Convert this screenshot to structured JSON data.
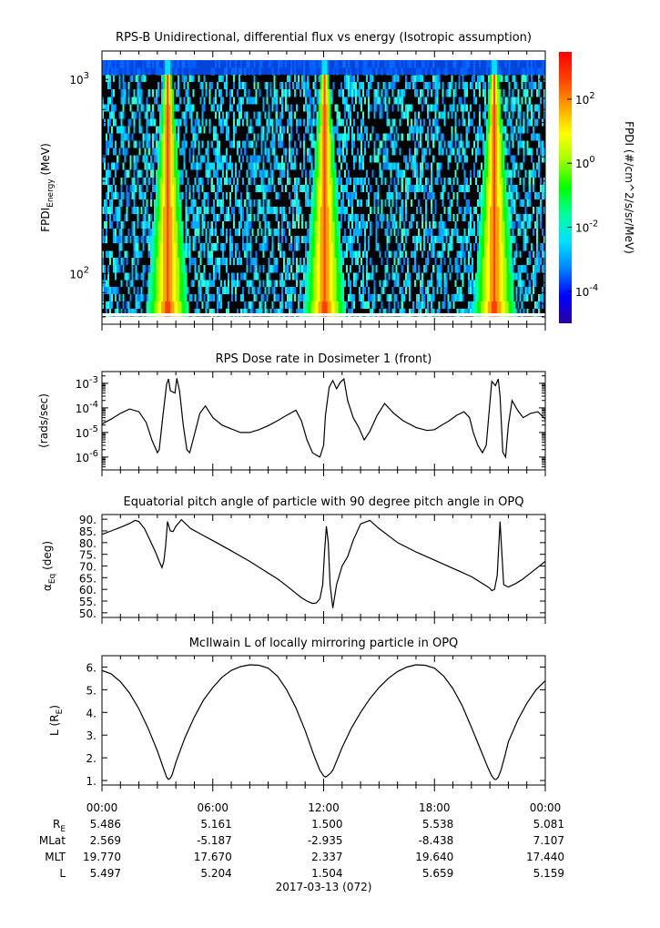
{
  "chart_data": [
    {
      "type": "heatmap",
      "title": "RPS-B  Unidirectional, differential flux vs energy (Isotropic assumption)",
      "ylabel_main": "FPDI",
      "ylabel_sub": "Energy",
      "ylabel_unit": "(MeV)",
      "y_scale": "log",
      "ylim": [
        55,
        1400
      ],
      "y_ticks": [
        {
          "base": "10",
          "exp": "2",
          "value": 100
        },
        {
          "base": "10",
          "exp": "3",
          "value": 1000
        }
      ],
      "energy_channels_mev": [
        58,
        63,
        69,
        75,
        82,
        89,
        97,
        106,
        116,
        126,
        137,
        150,
        163,
        178,
        194,
        212,
        231,
        252,
        275,
        300,
        327,
        357,
        389,
        424,
        463,
        505,
        550,
        600,
        655,
        714,
        779,
        850,
        927,
        1010,
        1100,
        1200,
        1300
      ],
      "belt_crossings_hours": [
        3.55,
        12.05,
        21.25
      ],
      "colorbar": {
        "label": "FPDI (#/cm^2/s/sr/MeV)",
        "scale": "log",
        "range": [
          1e-05,
          3000
        ],
        "ticks": [
          {
            "base": "10",
            "exp": "2",
            "value": 100
          },
          {
            "base": "10",
            "exp": "0",
            "value": 1
          },
          {
            "base": "10",
            "exp": "-2",
            "value": 0.01
          },
          {
            "base": "10",
            "exp": "-4",
            "value": 0.0001
          }
        ],
        "colors": [
          "#2a00a0",
          "#0000ff",
          "#0080ff",
          "#00e0ff",
          "#00ffa0",
          "#00ff00",
          "#a0ff00",
          "#ffff00",
          "#ffa000",
          "#ff4000",
          "#ff0000"
        ]
      }
    },
    {
      "type": "line",
      "title": "RPS  Dose rate in Dosimeter 1 (front)",
      "ylabel": "(rads/sec)",
      "y_scale": "log",
      "ylim": [
        3e-07,
        0.003
      ],
      "y_ticks": [
        {
          "base": "10",
          "exp": "-3",
          "value": 0.001
        },
        {
          "base": "10",
          "exp": "-4",
          "value": 0.0001
        },
        {
          "base": "10",
          "exp": "-5",
          "value": 1e-05
        },
        {
          "base": "10",
          "exp": "-6",
          "value": 1e-06
        }
      ],
      "x_hours": [
        0,
        0.5,
        1,
        1.5,
        2,
        2.4,
        2.7,
        3.0,
        3.1,
        3.3,
        3.5,
        3.6,
        3.7,
        3.95,
        4.05,
        4.2,
        4.4,
        4.6,
        4.75,
        5.0,
        5.3,
        5.6,
        6,
        6.5,
        7,
        7.5,
        8,
        8.5,
        9,
        9.5,
        10,
        10.5,
        10.8,
        11.1,
        11.4,
        11.6,
        11.8,
        12.0,
        12.1,
        12.3,
        12.5,
        12.7,
        12.9,
        13.1,
        13.3,
        13.6,
        13.9,
        14.2,
        14.5,
        14.9,
        15.3,
        15.8,
        16.3,
        17,
        17.6,
        18,
        18.4,
        18.8,
        19.2,
        19.6,
        19.9,
        20.1,
        20.35,
        20.6,
        20.8,
        21.0,
        21.1,
        21.3,
        21.45,
        21.55,
        21.7,
        21.85,
        22.0,
        22.2,
        22.5,
        22.8,
        23.2,
        23.6,
        24
      ],
      "series": [
        {
          "values": [
            2.2e-05,
            3.5e-05,
            6e-05,
            9e-05,
            7e-05,
            2.5e-05,
            5e-06,
            1.5e-06,
            2e-06,
            5e-05,
            0.0009,
            0.0015,
            0.0005,
            0.0004,
            0.0016,
            0.0005,
            2e-05,
            2e-06,
            1.5e-06,
            8e-06,
            6e-05,
            0.00012,
            4e-05,
            2e-05,
            1.4e-05,
            1e-05,
            1e-05,
            1.3e-05,
            1.9e-05,
            3e-05,
            5e-05,
            8e-05,
            3e-05,
            5e-06,
            1.5e-06,
            1.2e-06,
            1e-06,
            3e-06,
            5e-05,
            0.0007,
            0.0013,
            0.0006,
            0.0011,
            0.0015,
            0.0002,
            4e-05,
            1.6e-05,
            5e-06,
            1.1e-05,
            5e-05,
            0.00015,
            6e-05,
            3e-05,
            1.6e-05,
            1.2e-05,
            1.3e-05,
            2e-05,
            3e-05,
            5e-05,
            7e-05,
            4e-05,
            1e-05,
            3e-06,
            1.5e-06,
            3e-06,
            0.00015,
            0.0012,
            0.0008,
            0.0015,
            0.0003,
            1.6e-06,
            1e-06,
            2e-05,
            0.0002,
            8e-05,
            4e-05,
            6e-05,
            7e-05,
            3.5e-05
          ]
        }
      ]
    },
    {
      "type": "line",
      "title": "Equatorial pitch angle of particle with 90 degree pitch angle in OPQ",
      "ylabel_main": "α",
      "ylabel_sub": "Eq",
      "ylabel_unit": "(deg)",
      "ylim": [
        48,
        92
      ],
      "y_ticks": [
        {
          "label": "90.",
          "value": 90
        },
        {
          "label": "85.",
          "value": 85
        },
        {
          "label": "80.",
          "value": 80
        },
        {
          "label": "75.",
          "value": 75
        },
        {
          "label": "70.",
          "value": 70
        },
        {
          "label": "65.",
          "value": 65
        },
        {
          "label": "60.",
          "value": 60
        },
        {
          "label": "55.",
          "value": 55
        },
        {
          "label": "50.",
          "value": 50
        }
      ],
      "x_hours": [
        0,
        0.5,
        1,
        1.5,
        1.8,
        2.0,
        2.3,
        2.6,
        2.9,
        3.1,
        3.25,
        3.35,
        3.45,
        3.55,
        3.7,
        3.85,
        4.0,
        4.3,
        4.8,
        5.5,
        6.2,
        7,
        8,
        9,
        9.5,
        10,
        10.4,
        10.8,
        11.1,
        11.4,
        11.6,
        11.8,
        11.95,
        12.05,
        12.15,
        12.25,
        12.35,
        12.5,
        12.7,
        13,
        13.3,
        13.6,
        14,
        14.5,
        15,
        16,
        17,
        18,
        19,
        20,
        20.5,
        20.8,
        21.0,
        21.1,
        21.25,
        21.4,
        21.55,
        21.75,
        22,
        22.4,
        22.8,
        23.2,
        23.6,
        24
      ],
      "series": [
        {
          "values": [
            83.5,
            85,
            86.5,
            88.2,
            89.5,
            89,
            86,
            81,
            76,
            72,
            69.3,
            72,
            79,
            89,
            85,
            84.7,
            87,
            89.8,
            86,
            83,
            80,
            76.5,
            72,
            67,
            64.5,
            61.5,
            59,
            56.5,
            55,
            54,
            54.2,
            56,
            62,
            76,
            87,
            80,
            62,
            52,
            62,
            70,
            74,
            81,
            88,
            89.5,
            86,
            80,
            76,
            72.5,
            69,
            65.5,
            63,
            61.5,
            60.5,
            59.5,
            60,
            66,
            89,
            62,
            61,
            62.5,
            64.5,
            67,
            69.5,
            72
          ]
        }
      ]
    },
    {
      "type": "line",
      "title": "McIlwain L of locally mirroring particle in OPQ",
      "ylabel_main": "L (R",
      "ylabel_sub": "E",
      "ylabel_unit": ")",
      "ylim": [
        0.8,
        6.5
      ],
      "y_ticks": [
        {
          "label": "6.",
          "value": 6
        },
        {
          "label": "5.",
          "value": 5
        },
        {
          "label": "4.",
          "value": 4
        },
        {
          "label": "3.",
          "value": 3
        },
        {
          "label": "2.",
          "value": 2
        },
        {
          "label": "1.",
          "value": 1
        }
      ],
      "x_hours": [
        0,
        0.5,
        1,
        1.5,
        2,
        2.5,
        3,
        3.3,
        3.5,
        3.6,
        3.7,
        3.8,
        4,
        4.5,
        5,
        5.5,
        6,
        6.5,
        7,
        7.5,
        8,
        8.5,
        9,
        9.5,
        10,
        10.5,
        11,
        11.5,
        11.8,
        12.0,
        12.1,
        12.2,
        12.35,
        12.5,
        13,
        13.5,
        14,
        14.5,
        15,
        15.5,
        16,
        16.5,
        17,
        17.5,
        18,
        18.5,
        19,
        19.5,
        20,
        20.5,
        20.9,
        21.1,
        21.25,
        21.35,
        21.45,
        21.6,
        21.8,
        22,
        22.5,
        23,
        23.5,
        24
      ],
      "series": [
        {
          "values": [
            5.85,
            5.7,
            5.35,
            4.85,
            4.15,
            3.3,
            2.3,
            1.6,
            1.15,
            1.05,
            1.1,
            1.25,
            1.8,
            2.9,
            3.8,
            4.55,
            5.1,
            5.55,
            5.85,
            6.02,
            6.1,
            6.08,
            5.95,
            5.6,
            5.0,
            4.2,
            3.2,
            2.05,
            1.45,
            1.2,
            1.15,
            1.2,
            1.3,
            1.45,
            2.45,
            3.3,
            4.0,
            4.6,
            5.1,
            5.5,
            5.8,
            6.0,
            6.1,
            6.08,
            5.95,
            5.6,
            5.05,
            4.3,
            3.35,
            2.35,
            1.55,
            1.2,
            1.05,
            1.05,
            1.15,
            1.45,
            2.05,
            2.7,
            3.65,
            4.4,
            5.0,
            5.4
          ]
        }
      ]
    }
  ],
  "x_axis": {
    "range_hours": [
      0,
      24
    ],
    "time_labels": [
      "00:00",
      "06:00",
      "12:00",
      "18:00",
      "00:00"
    ],
    "date_label": "2017-03-13 (072)"
  },
  "ephemeris": [
    {
      "label": "R",
      "label_sub": "E",
      "values": [
        "5.486",
        "5.161",
        "1.500",
        "5.538",
        "5.081"
      ]
    },
    {
      "label": "MLat",
      "label_sub": "",
      "values": [
        "2.569",
        "-5.187",
        "-2.935",
        "-8.438",
        "7.107"
      ]
    },
    {
      "label": "MLT",
      "label_sub": "",
      "values": [
        "19.770",
        "17.670",
        "2.337",
        "19.640",
        "17.440"
      ]
    },
    {
      "label": "L",
      "label_sub": "",
      "values": [
        "5.497",
        "5.204",
        "1.504",
        "5.659",
        "5.159"
      ]
    }
  ]
}
